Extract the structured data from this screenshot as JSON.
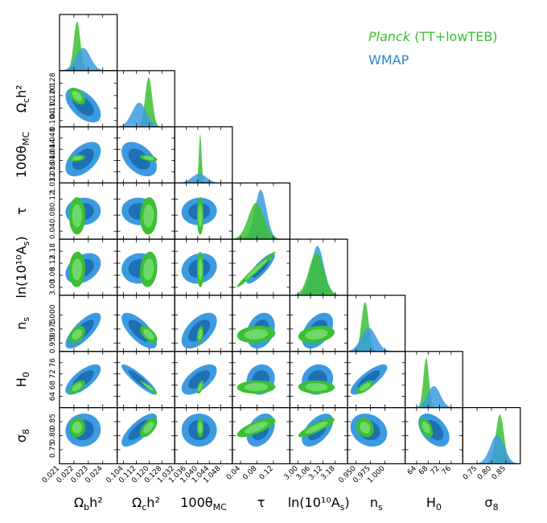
{
  "chart_data": {
    "type": "scatter",
    "subtype": "triangle-posterior",
    "colors": {
      "planck": "#3bbf33",
      "wmap": "#3c9be0",
      "wmap_inner": "#1f6fb5",
      "planck_inner": "#6fd86a"
    },
    "legend": [
      {
        "name": "Planck",
        "suffix": " (TT+lowTEB)",
        "color": "#3bbf33"
      },
      {
        "name": "WMAP",
        "suffix": "",
        "color": "#2a86c8"
      }
    ],
    "parameters": [
      {
        "label": "Ω_b h²",
        "range": [
          0.021,
          0.025
        ],
        "ticks": [
          "0.021",
          "0.022",
          "0.023",
          "0.024"
        ],
        "tick_vals": [
          0.021,
          0.022,
          0.023,
          0.024
        ],
        "planck": {
          "mean": 0.02222,
          "sd": 0.00023
        },
        "wmap": {
          "mean": 0.02264,
          "sd": 0.0005
        }
      },
      {
        "label": "Ω_c h²",
        "range": [
          0.1,
          0.136
        ],
        "ticks": [
          "0.104",
          "0.112",
          "0.120",
          "0.128"
        ],
        "tick_vals": [
          0.104,
          0.112,
          0.12,
          0.128
        ],
        "planck": {
          "mean": 0.1197,
          "sd": 0.0022
        },
        "wmap": {
          "mean": 0.1138,
          "sd": 0.0045
        }
      },
      {
        "label": "100θ_MC",
        "range": [
          1.032,
          1.052
        ],
        "ticks": [
          "1.032",
          "1.036",
          "1.040",
          "1.044",
          "1.048"
        ],
        "tick_vals": [
          1.032,
          1.036,
          1.04,
          1.044,
          1.048
        ],
        "planck": {
          "mean": 1.04085,
          "sd": 0.00047
        },
        "wmap": {
          "mean": 1.0405,
          "sd": 0.0025
        }
      },
      {
        "label": "τ",
        "range": [
          0.02,
          0.16
        ],
        "ticks": [
          "0.04",
          "0.08",
          "0.12"
        ],
        "tick_vals": [
          0.04,
          0.08,
          0.12
        ],
        "planck": {
          "mean": 0.078,
          "sd": 0.019
        },
        "wmap": {
          "mean": 0.089,
          "sd": 0.014
        }
      },
      {
        "label": "ln(10¹⁰A_s)",
        "range": [
          2.96,
          3.24
        ],
        "ticks": [
          "3.00",
          "3.06",
          "3.12",
          "3.18"
        ],
        "tick_vals": [
          3.0,
          3.06,
          3.12,
          3.18
        ],
        "planck": {
          "mean": 3.089,
          "sd": 0.036
        },
        "wmap": {
          "mean": 3.094,
          "sd": 0.031
        }
      },
      {
        "label": "n_s",
        "range": [
          0.935,
          1.035
        ],
        "ticks": [
          "0.950",
          "0.975",
          "1.000"
        ],
        "tick_vals": [
          0.95,
          0.975,
          1.0
        ],
        "planck": {
          "mean": 0.9655,
          "sd": 0.0062
        },
        "wmap": {
          "mean": 0.972,
          "sd": 0.013
        }
      },
      {
        "label": "H_0",
        "range": [
          60,
          80
        ],
        "ticks": [
          "64",
          "68",
          "72",
          "76"
        ],
        "tick_vals": [
          64,
          68,
          72,
          76
        ],
        "planck": {
          "mean": 67.31,
          "sd": 0.96
        },
        "wmap": {
          "mean": 70.0,
          "sd": 2.2
        }
      },
      {
        "label": "σ_8",
        "range": [
          0.7,
          0.9
        ],
        "ticks": [
          "0.75",
          "0.80",
          "0.85"
        ],
        "tick_vals": [
          0.75,
          0.8,
          0.85
        ],
        "planck": {
          "mean": 0.829,
          "sd": 0.014
        },
        "wmap": {
          "mean": 0.82,
          "sd": 0.024
        }
      }
    ],
    "bottom_labels": [
      {
        "base": "Ω",
        "sub": "b",
        "rest": "h²"
      },
      {
        "base": "Ω",
        "sub": "c",
        "rest": "h²"
      },
      {
        "base": "100θ",
        "sub": "MC",
        "rest": ""
      },
      {
        "base": "τ",
        "sub": "",
        "rest": ""
      },
      {
        "base": "ln(10¹⁰A",
        "sub": "s",
        "rest": ")"
      },
      {
        "base": "n",
        "sub": "s",
        "rest": ""
      },
      {
        "base": "H",
        "sub": "0",
        "rest": ""
      },
      {
        "base": "σ",
        "sub": "8",
        "rest": ""
      }
    ],
    "left_labels": [
      {
        "base": "Ω",
        "sub": "c",
        "rest": "h²"
      },
      {
        "base": "100θ",
        "sub": "MC",
        "rest": ""
      },
      {
        "base": "τ",
        "sub": "",
        "rest": ""
      },
      {
        "base": "ln(10¹⁰A",
        "sub": "s",
        "rest": ")"
      },
      {
        "base": "n",
        "sub": "s",
        "rest": ""
      },
      {
        "base": "H",
        "sub": "0",
        "rest": ""
      },
      {
        "base": "σ",
        "sub": "8",
        "rest": ""
      }
    ],
    "correlations": {
      "wmap": [
        [
          0
        ],
        [
          -0.55,
          0
        ],
        [
          0.5,
          -0.45,
          0
        ],
        [
          0.05,
          -0.05,
          0.05,
          0
        ],
        [
          0.35,
          0.05,
          0.15,
          0.85,
          0
        ],
        [
          0.75,
          -0.7,
          0.55,
          0.25,
          0.45,
          0
        ],
        [
          0.7,
          -0.9,
          0.6,
          0.1,
          0.1,
          0.8,
          0
        ],
        [
          0.05,
          0.75,
          0.0,
          0.35,
          0.55,
          -0.2,
          -0.45,
          0
        ]
      ],
      "planck": [
        [
          0
        ],
        [
          -0.5,
          0
        ],
        [
          0.3,
          -0.45,
          0
        ],
        [
          0.0,
          0.05,
          0.0,
          0
        ],
        [
          0.05,
          0.15,
          -0.05,
          0.98,
          0
        ],
        [
          0.4,
          -0.6,
          0.35,
          0.15,
          0.25,
          0
        ],
        [
          0.6,
          -0.95,
          0.55,
          0.05,
          -0.05,
          0.7,
          0
        ],
        [
          0.05,
          0.6,
          0.0,
          0.75,
          0.85,
          -0.2,
          -0.5,
          0
        ]
      ]
    }
  }
}
